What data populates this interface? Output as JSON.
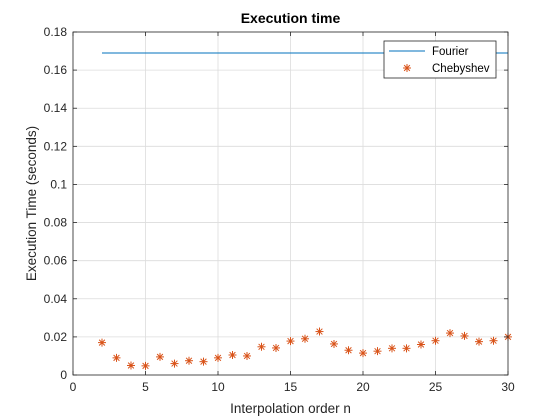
{
  "chart_data": {
    "type": "scatter",
    "title": "Execution time",
    "xlabel": "Interpolation order n",
    "ylabel": "Execution Time (seconds)",
    "xlim": [
      0,
      30
    ],
    "ylim": [
      0,
      0.18
    ],
    "xticks": [
      0,
      5,
      10,
      15,
      20,
      25,
      30
    ],
    "yticks": [
      0,
      0.02,
      0.04,
      0.06,
      0.08,
      0.1,
      0.12,
      0.14,
      0.16,
      0.18
    ],
    "xtick_labels": [
      "0",
      "5",
      "10",
      "15",
      "20",
      "25",
      "30"
    ],
    "ytick_labels": [
      "0",
      "0.02",
      "0.04",
      "0.06",
      "0.08",
      "0.1",
      "0.12",
      "0.14",
      "0.16",
      "0.18"
    ],
    "grid": true,
    "legend_position": "top-right",
    "series": [
      {
        "name": "Fourier",
        "style": "line",
        "color": "#0072BD",
        "x": [
          2,
          30
        ],
        "y": [
          0.169,
          0.169
        ]
      },
      {
        "name": "Chebyshev",
        "style": "asterisk",
        "color": "#D95319",
        "x": [
          2,
          3,
          4,
          5,
          6,
          7,
          8,
          9,
          10,
          11,
          12,
          13,
          14,
          15,
          16,
          17,
          18,
          19,
          20,
          21,
          22,
          23,
          24,
          25,
          26,
          27,
          28,
          29,
          30
        ],
        "y": [
          0.017,
          0.009,
          0.005,
          0.0048,
          0.0095,
          0.006,
          0.0075,
          0.007,
          0.009,
          0.0105,
          0.01,
          0.0148,
          0.0142,
          0.0178,
          0.019,
          0.0228,
          0.0163,
          0.013,
          0.0115,
          0.0125,
          0.014,
          0.014,
          0.016,
          0.018,
          0.022,
          0.0205,
          0.0175,
          0.018,
          0.02
        ]
      }
    ]
  }
}
